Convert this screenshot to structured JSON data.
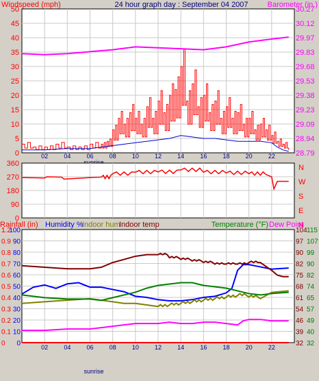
{
  "header": {
    "left_label": "Windspeed (mph)",
    "center_title": "24 hour graph day : September 04 2007",
    "right_label": "Barometer (in.)"
  },
  "colors": {
    "background": "#d4d0c8",
    "plot": "#ffffff",
    "grid": "#c8c8c8",
    "windspeed": "#ff0000",
    "windspeed_avg": "#0000cc",
    "barometer": "#ff00ff",
    "direction": "#ff0000",
    "rainfall": "#ff0000",
    "humidity": "#0000ff",
    "indoor_hum": "#808000",
    "indoor_temp": "#800000",
    "temperature": "#008000",
    "dew_point": "#ff00ff",
    "title": "#000080"
  },
  "chart_data": [
    {
      "type": "line",
      "name": "wind-barometer",
      "title": "24 hour graph day : September 04 2007",
      "ylabel": "Windspeed (mph)",
      "y2label": "Barometer (in.)",
      "xticks": [
        "02",
        "04",
        "06",
        "08",
        "10",
        "12",
        "14",
        "16",
        "18",
        "20",
        "22"
      ],
      "x_annotation": "sunrise",
      "ylim": [
        0,
        50
      ],
      "yticks": [
        0,
        5,
        10,
        15,
        20,
        25,
        30,
        35,
        40,
        45,
        50
      ],
      "y2ticks": [
        "28.79",
        "28.94",
        "29.09",
        "29.23",
        "29.38",
        "29.53",
        "29.68",
        "29.83",
        "29.97",
        "30.12",
        "30.27"
      ],
      "series": [
        {
          "name": "Windspeed (mph)",
          "x": [
            0,
            1,
            2,
            3,
            4,
            5,
            6,
            7,
            7.5,
            8,
            8.5,
            9,
            9.5,
            10,
            10.5,
            11,
            11.5,
            12,
            12.5,
            13,
            13.5,
            14,
            14.5,
            15,
            15.5,
            16,
            16.5,
            17,
            17.5,
            18,
            18.5,
            19,
            19.5,
            20,
            20.5,
            21,
            21.5,
            22,
            22.5,
            23,
            23.5
          ],
          "y": [
            3,
            2,
            2,
            3,
            2,
            2,
            3,
            3,
            4,
            8,
            12,
            10,
            14,
            12,
            10,
            16,
            12,
            18,
            14,
            20,
            22,
            30,
            18,
            24,
            16,
            20,
            14,
            18,
            12,
            16,
            12,
            14,
            10,
            12,
            8,
            10,
            8,
            6,
            4,
            3,
            1
          ]
        },
        {
          "name": "Wind average",
          "x": [
            0,
            2,
            4,
            6,
            7,
            8,
            9,
            10,
            11,
            12,
            13,
            14,
            15,
            16,
            17,
            18,
            19,
            20,
            21,
            22,
            22.5,
            23,
            23.5
          ],
          "y": [
            1,
            1,
            1.5,
            1.5,
            2,
            2.5,
            3,
            3.5,
            4,
            4.5,
            5,
            6,
            5.5,
            5,
            5,
            4.5,
            4,
            4,
            4,
            3.5,
            2,
            1,
            0.5
          ]
        },
        {
          "name": "Barometer (in.)",
          "x": [
            0,
            2,
            4,
            6,
            8,
            10,
            12,
            14,
            16,
            18,
            20,
            22,
            23.5
          ],
          "y": [
            29.81,
            29.8,
            29.81,
            29.83,
            29.85,
            29.88,
            29.87,
            29.86,
            29.85,
            29.88,
            29.93,
            29.96,
            29.98
          ]
        }
      ]
    },
    {
      "type": "line",
      "name": "wind-direction",
      "xlim": [
        0,
        24
      ],
      "ylim": [
        0,
        360
      ],
      "yticks": [
        0,
        90,
        180,
        270,
        360
      ],
      "y2ticks": [
        "N",
        "E",
        "S",
        "W",
        "N"
      ],
      "series": [
        {
          "name": "Wind direction",
          "x": [
            0,
            2,
            2.2,
            3.5,
            3.7,
            6,
            7,
            8,
            10,
            12,
            14,
            16,
            18,
            20,
            21.5,
            22,
            22.2,
            22.5,
            23.5
          ],
          "y": [
            265,
            262,
            270,
            268,
            255,
            265,
            268,
            290,
            300,
            302,
            315,
            300,
            295,
            290,
            285,
            270,
            190,
            240,
            240
          ]
        }
      ]
    },
    {
      "type": "line",
      "name": "temp-humidity-rain",
      "ylabels": [
        "Rainfall (in)",
        "Humidity %",
        "Indoor hum",
        "Indoor temp"
      ],
      "y2labels": [
        "Temperature (°F)",
        "Dew Point"
      ],
      "xticks": [
        "02",
        "04",
        "06",
        "08",
        "10",
        "12",
        "14",
        "16",
        "18",
        "20",
        "22"
      ],
      "x_annotation": "sunrise",
      "rain_ticks": [
        "0",
        "0.1",
        "0.2",
        "0.3",
        "0.4",
        "0.5",
        "0.6",
        "0.7",
        "0.8",
        "0.9",
        "1",
        "1.2"
      ],
      "humidity_ticks": [
        "0",
        "10",
        "20",
        "30",
        "40",
        "50",
        "60",
        "70",
        "80",
        "90",
        "100"
      ],
      "indoor_ticks": [
        "32",
        "39",
        "46",
        "54",
        "61",
        "68",
        "75",
        "82",
        "90",
        "97",
        "104"
      ],
      "temp_ticks": [
        "32",
        "40",
        "49",
        "57",
        "65",
        "74",
        "82",
        "90",
        "99",
        "107",
        "115"
      ],
      "series": [
        {
          "name": "Rainfall (in)",
          "x": [
            0,
            23.5
          ],
          "y": [
            0,
            0
          ]
        },
        {
          "name": "Humidity %",
          "x": [
            0,
            1,
            2,
            3,
            4,
            5,
            6,
            7,
            8,
            9,
            10,
            11,
            12,
            13,
            14,
            15,
            16,
            17,
            18,
            18.5,
            19,
            19.5,
            20,
            21,
            22,
            23.5
          ],
          "y": [
            43,
            49,
            51,
            48,
            52,
            53,
            49,
            49,
            47,
            45,
            41,
            40,
            38,
            37,
            37,
            38,
            40,
            41,
            44,
            48,
            64,
            69,
            69,
            67,
            65,
            66
          ]
        },
        {
          "name": "Indoor hum",
          "x": [
            0,
            2,
            4,
            6,
            7,
            8,
            9,
            10,
            11,
            12,
            13,
            14,
            15,
            16,
            17,
            18,
            19,
            20,
            21,
            22,
            23.5
          ],
          "y": [
            57,
            58,
            59,
            60,
            59,
            58,
            57,
            57,
            56,
            55,
            56,
            57,
            58,
            59,
            60,
            61,
            62,
            61,
            60,
            64,
            65
          ]
        },
        {
          "name": "Indoor temp",
          "x": [
            0,
            2,
            4,
            6,
            7,
            8,
            9,
            10,
            11,
            12,
            13,
            14,
            15,
            16,
            17,
            18,
            19,
            20,
            21,
            22,
            22.5,
            23,
            23.5
          ],
          "y": [
            81,
            80,
            79,
            79,
            80,
            83,
            85,
            87,
            88,
            88,
            86,
            85,
            84,
            83,
            82,
            82,
            82,
            83,
            83,
            78,
            75,
            74,
            74
          ]
        },
        {
          "name": "Temperature (°F)",
          "x": [
            0,
            2,
            4,
            6,
            7,
            8,
            9,
            10,
            11,
            12,
            13,
            14,
            15,
            16,
            17,
            18,
            19,
            20,
            21,
            22,
            23.5
          ],
          "y": [
            67,
            65,
            64,
            64,
            63,
            65,
            67,
            69,
            72,
            74,
            75,
            76,
            76,
            74,
            73,
            72,
            70,
            68,
            67,
            68,
            69
          ]
        },
        {
          "name": "Dew Point",
          "x": [
            0,
            2,
            4,
            6,
            7,
            8,
            9,
            10,
            11,
            12,
            13,
            14,
            15,
            16,
            17,
            18,
            19,
            19.5,
            20,
            21,
            22,
            23.5
          ],
          "y": [
            41,
            41,
            42,
            42,
            43,
            44,
            45,
            46,
            46,
            46,
            47,
            46,
            46,
            47,
            47,
            46,
            45,
            48,
            49,
            49,
            48,
            48
          ]
        }
      ]
    }
  ]
}
